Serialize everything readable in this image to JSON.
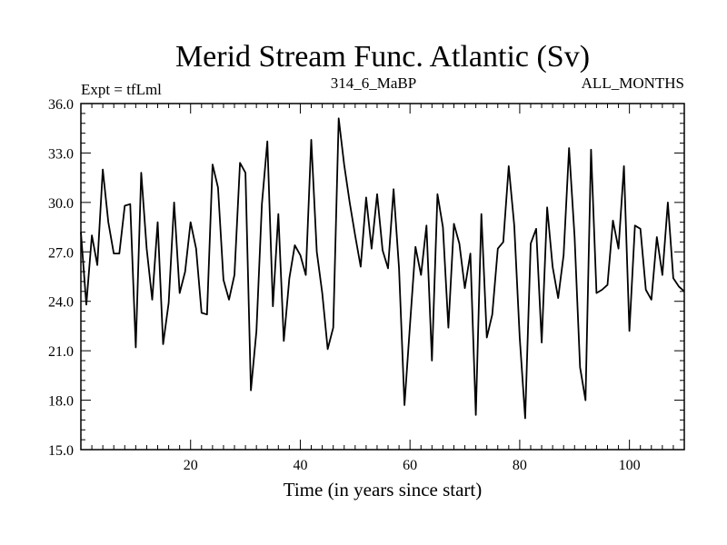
{
  "chart_data": {
    "type": "line",
    "title": "Merid Stream Func. Atlantic (Sv)",
    "subtitle_left": "Expt = tfLml",
    "subtitle_center": "314_6_MaBP",
    "subtitle_right": "ALL_MONTHS",
    "xlabel": "Time (in years since start)",
    "ylabel": "",
    "xlim": [
      0,
      110
    ],
    "ylim": [
      15.0,
      36.0
    ],
    "x_ticks": [
      20,
      40,
      60,
      80,
      100
    ],
    "x_tick_labels": [
      "20",
      "40",
      "60",
      "80",
      "100"
    ],
    "y_ticks": [
      15.0,
      18.0,
      21.0,
      24.0,
      27.0,
      30.0,
      33.0,
      36.0
    ],
    "y_tick_labels": [
      "15.0",
      "18.0",
      "21.0",
      "24.0",
      "27.0",
      "30.0",
      "33.0",
      "36.0"
    ],
    "grid": false,
    "line_color": "#000000",
    "series": [
      {
        "x": [
          0,
          1,
          2,
          3,
          4,
          5,
          6,
          7,
          8,
          9,
          10,
          11,
          12,
          13,
          14,
          15,
          16,
          17,
          18,
          19,
          20,
          21,
          22,
          23,
          24,
          25,
          26,
          27,
          28,
          29,
          30,
          31,
          32,
          33,
          34,
          35,
          36,
          37,
          38,
          39,
          40,
          41,
          42,
          43,
          44,
          45,
          46,
          47,
          48,
          49,
          50,
          51,
          52,
          53,
          54,
          55,
          56,
          57,
          58,
          59,
          60,
          61,
          62,
          63,
          64,
          65,
          66,
          67,
          68,
          69,
          70,
          71,
          72,
          73,
          74,
          75,
          76,
          77,
          78,
          79,
          80,
          81,
          82,
          83,
          84,
          85,
          86,
          87,
          88,
          89,
          90,
          91,
          92,
          93,
          94,
          95,
          96,
          97,
          98,
          99,
          100,
          101,
          102,
          103,
          104,
          105,
          106,
          107,
          108,
          109,
          110
        ],
        "y": [
          28.2,
          23.8,
          28.0,
          26.2,
          32.0,
          28.8,
          26.9,
          26.9,
          29.8,
          29.9,
          21.2,
          31.8,
          27.2,
          24.1,
          28.8,
          21.4,
          23.9,
          30.0,
          24.5,
          25.8,
          28.8,
          27.2,
          23.3,
          23.2,
          32.3,
          30.9,
          25.3,
          24.1,
          25.6,
          32.4,
          31.8,
          18.6,
          22.2,
          29.9,
          33.7,
          23.7,
          29.3,
          21.6,
          25.4,
          27.4,
          26.8,
          25.6,
          33.8,
          27.0,
          24.5,
          21.1,
          22.4,
          35.1,
          32.3,
          30.0,
          28.0,
          26.1,
          30.3,
          27.2,
          30.5,
          27.1,
          26.0,
          30.8,
          26.0,
          17.7,
          22.6,
          27.3,
          25.6,
          28.6,
          20.4,
          30.5,
          28.5,
          22.4,
          28.7,
          27.5,
          24.8,
          26.9,
          17.1,
          29.3,
          21.8,
          23.2,
          27.2,
          27.6,
          32.2,
          28.6,
          21.8,
          16.9,
          27.5,
          28.4,
          21.5,
          29.7,
          26.1,
          24.2,
          26.8,
          33.3,
          27.9,
          20.0,
          18.0,
          33.2,
          24.5,
          24.7,
          25.0,
          28.9,
          27.2,
          32.2,
          22.2,
          28.6,
          28.4,
          24.7,
          24.1,
          27.9,
          25.6,
          30.0,
          25.4,
          24.9,
          24.6
        ]
      }
    ]
  }
}
